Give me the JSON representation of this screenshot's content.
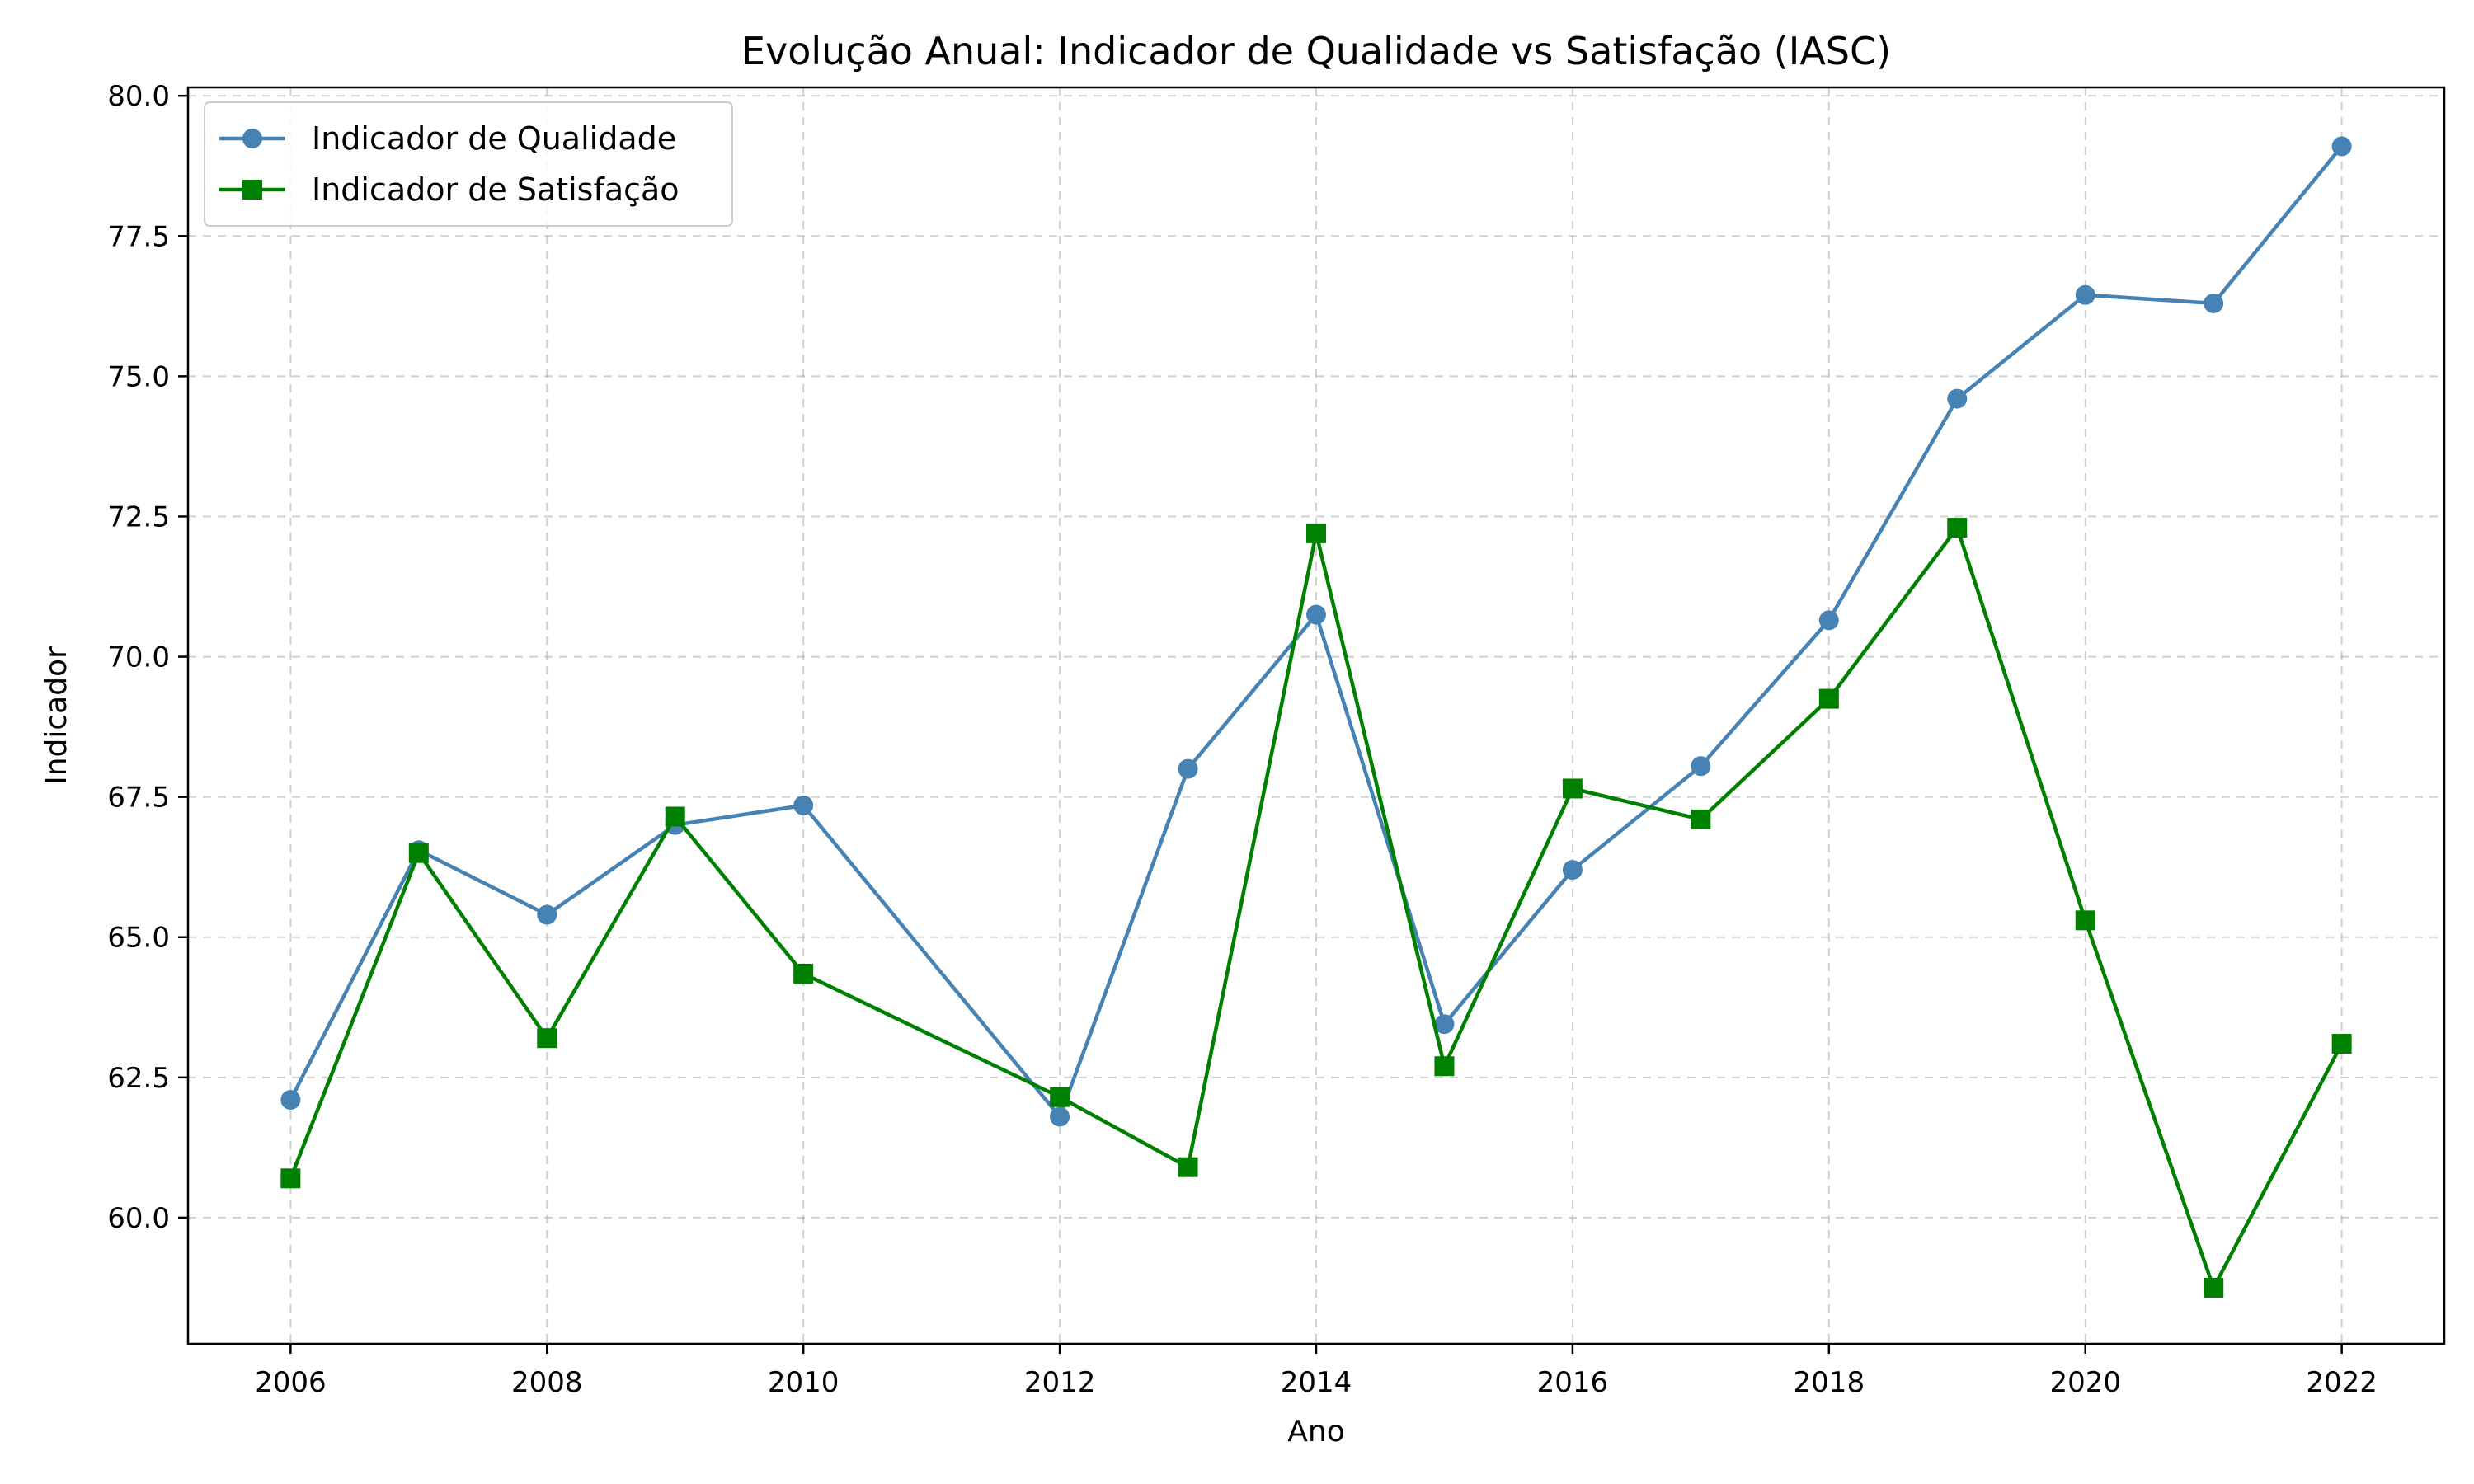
{
  "chart_data": {
    "type": "line",
    "title": "Evolução Anual: Indicador de Qualidade vs Satisfação (IASC)",
    "xlabel": "Ano",
    "ylabel": "Indicador",
    "xlim": [
      2005.2,
      2022.8
    ],
    "ylim": [
      57.75,
      80.15
    ],
    "xticks": [
      2006,
      2008,
      2010,
      2012,
      2014,
      2016,
      2018,
      2020,
      2022
    ],
    "xtick_labels": [
      "2006",
      "2008",
      "2010",
      "2012",
      "2014",
      "2016",
      "2018",
      "2020",
      "2022"
    ],
    "yticks": [
      60.0,
      62.5,
      65.0,
      67.5,
      70.0,
      72.5,
      75.0,
      77.5,
      80.0
    ],
    "ytick_labels": [
      "60.0",
      "62.5",
      "65.0",
      "67.5",
      "70.0",
      "72.5",
      "75.0",
      "77.5",
      "80.0"
    ],
    "grid": true,
    "legend_position": "top-left",
    "x": [
      2006,
      2007,
      2008,
      2009,
      2010,
      2012,
      2013,
      2014,
      2015,
      2016,
      2017,
      2018,
      2019,
      2020,
      2021,
      2022
    ],
    "series": [
      {
        "name": "Indicador de Qualidade",
        "color": "#4682b4",
        "marker": "circle",
        "values": [
          62.1,
          66.55,
          65.4,
          67.0,
          67.35,
          61.8,
          68.0,
          70.75,
          63.45,
          66.2,
          68.05,
          70.65,
          74.6,
          76.45,
          76.3,
          79.1
        ]
      },
      {
        "name": "Indicador de Satisfação",
        "color": "#008000",
        "marker": "square",
        "values": [
          60.7,
          66.5,
          63.2,
          67.15,
          64.35,
          62.15,
          60.9,
          72.2,
          62.7,
          67.65,
          67.1,
          69.25,
          72.3,
          65.3,
          58.75,
          63.1
        ]
      }
    ]
  }
}
